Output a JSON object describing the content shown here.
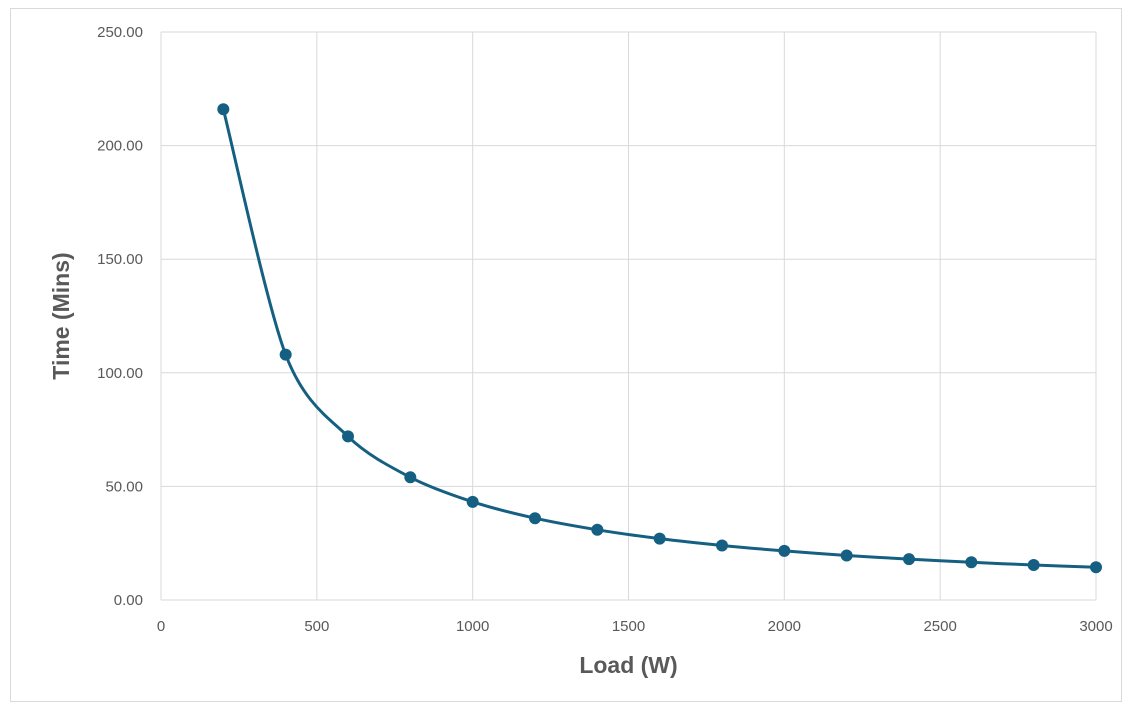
{
  "chart_data": {
    "type": "line",
    "title": "",
    "xlabel": "Load (W)",
    "ylabel": "Time (Mins)",
    "xlim": [
      0,
      3000
    ],
    "ylim": [
      0,
      250
    ],
    "x_ticks": [
      0,
      500,
      1000,
      1500,
      2000,
      2500,
      3000
    ],
    "x_tick_labels": [
      "0",
      "500",
      "1000",
      "1500",
      "2000",
      "2500",
      "3000"
    ],
    "y_ticks": [
      0,
      50,
      100,
      150,
      200,
      250
    ],
    "y_tick_labels": [
      "0.00",
      "50.00",
      "100.00",
      "150.00",
      "200.00",
      "250.00"
    ],
    "grid": true,
    "legend": "none",
    "series": [
      {
        "color": "#156082",
        "markers": true,
        "x": [
          200,
          400,
          600,
          800,
          1000,
          1200,
          1400,
          1600,
          1800,
          2000,
          2200,
          2400,
          2600,
          2800,
          3000
        ],
        "values": [
          216,
          108,
          72,
          54,
          43.2,
          36,
          30.9,
          27,
          24,
          21.6,
          19.6,
          18,
          16.6,
          15.4,
          14.4
        ]
      }
    ]
  }
}
